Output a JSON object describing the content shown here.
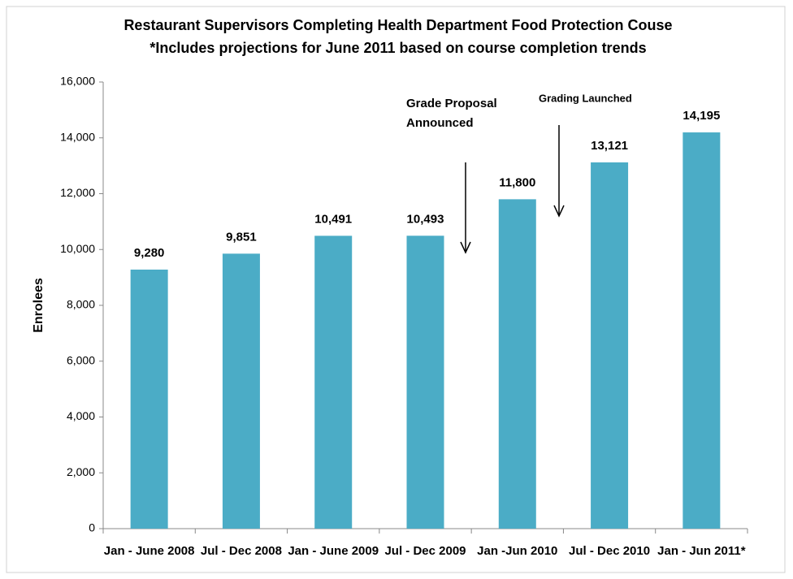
{
  "chart_data": {
    "type": "bar",
    "title": "Restaurant Supervisors Completing Health Department Food Protection Couse",
    "subtitle": "*Includes projections for June 2011 based on course completion trends",
    "y_label": "Enrolees",
    "categories": [
      "Jan - June 2008",
      "Jul - Dec 2008",
      "Jan - June 2009",
      "Jul - Dec 2009",
      "Jan -Jun 2010",
      "Jul - Dec 2010",
      "Jan - Jun 2011*"
    ],
    "values": [
      9280,
      9851,
      10491,
      10493,
      11800,
      13121,
      14195
    ],
    "value_labels": [
      "9,280",
      "9,851",
      "10,491",
      "10,493",
      "11,800",
      "13,121",
      "14,195"
    ],
    "color": "#4bacc6",
    "ylim": [
      0,
      16000
    ],
    "yticks": [
      0,
      {
        "value": 2000,
        "label": "2,000"
      },
      {
        "value": 4000,
        "label": "4,000"
      },
      {
        "value": 6000,
        "label": "6,000"
      },
      {
        "value": 8000,
        "label": "8,000"
      },
      {
        "value": 10000,
        "label": "10,000"
      },
      {
        "value": 12000,
        "label": "12,000"
      },
      {
        "value": 14000,
        "label": "14,000"
      },
      {
        "value": 16000,
        "label": "16,000"
      }
    ],
    "grid": false,
    "annotations": [
      "Grade Proposal Announced",
      "Grading Launched"
    ]
  }
}
